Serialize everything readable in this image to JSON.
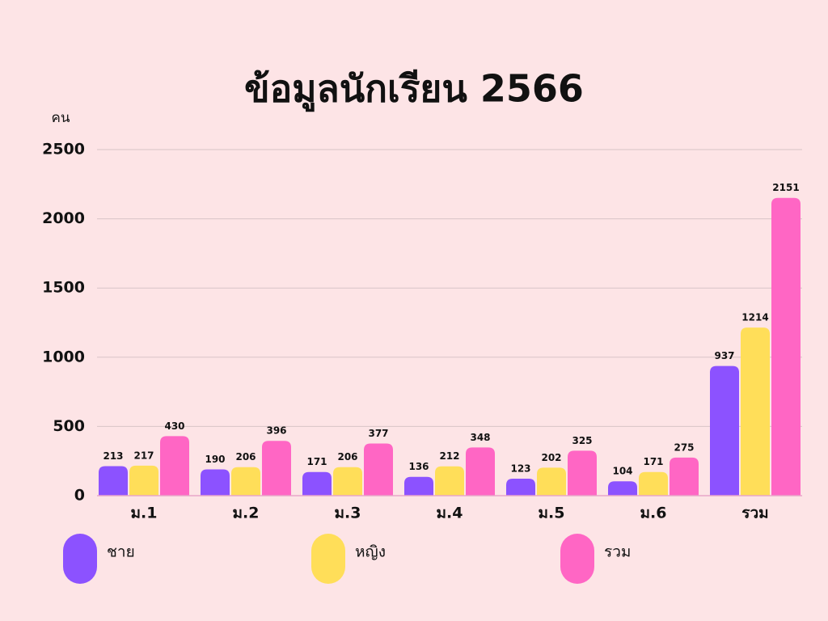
{
  "chart_data": {
    "type": "bar",
    "title": "ข้อมูลนักเรียน 2566",
    "y_axis_label": "คน",
    "categories": [
      "ม.1",
      "ม.2",
      "ม.3",
      "ม.4",
      "ม.5",
      "ม.6",
      "รวม"
    ],
    "series": [
      {
        "name": "ชาย",
        "color": "#8c52ff",
        "values": [
          213,
          190,
          171,
          136,
          123,
          104,
          937
        ]
      },
      {
        "name": "หญิง",
        "color": "#ffde59",
        "values": [
          217,
          206,
          206,
          212,
          202,
          171,
          1214
        ]
      },
      {
        "name": "รวม",
        "color": "#ff66c4",
        "values": [
          430,
          396,
          377,
          348,
          325,
          275,
          2151
        ]
      }
    ],
    "ylim": [
      0,
      2500
    ],
    "yticks": [
      0,
      500,
      1000,
      1500,
      2000,
      2500
    ],
    "grid": true
  }
}
